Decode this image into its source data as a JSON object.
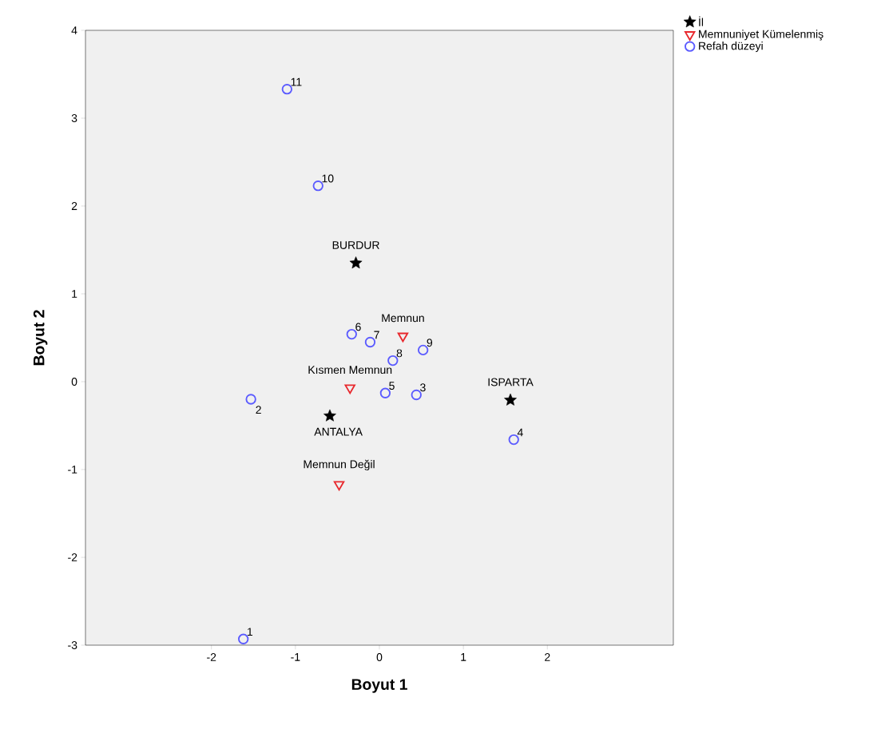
{
  "chart_data": {
    "type": "scatter",
    "xlabel": "Boyut 1",
    "ylabel": "Boyut 2",
    "xlim": [
      -3.5,
      3.5
    ],
    "ylim": [
      -3,
      4
    ],
    "xticks": [
      -2,
      -1,
      0,
      1,
      2
    ],
    "yticks": [
      -3,
      -2,
      -1,
      0,
      1,
      2,
      3,
      4
    ],
    "grid": false,
    "legend": "top right",
    "series": [
      {
        "name": "İl",
        "color": "#000000",
        "marker": "star",
        "x": [
          -0.28,
          -0.59,
          1.56
        ],
        "values": [
          1.35,
          -0.39,
          -0.21
        ]
      },
      {
        "name": "Memnuniyet Kümelenmiş",
        "color": "#e8282d",
        "marker": "triangle",
        "x": [
          0.28,
          -0.35,
          -0.48
        ],
        "values": [
          0.52,
          -0.07,
          -1.17
        ]
      },
      {
        "name": "Refah düzeyi",
        "color": "#5b5bff",
        "marker": "circle",
        "x": [
          -1.62,
          -1.53,
          0.44,
          1.6,
          0.07,
          -0.33,
          -0.11,
          0.16,
          0.52,
          -0.73,
          -1.1
        ],
        "values": [
          -2.93,
          -0.2,
          -0.15,
          -0.66,
          -0.13,
          0.54,
          0.45,
          0.24,
          0.36,
          2.23,
          3.33
        ]
      }
    ],
    "annotations": [
      {
        "text": "1",
        "x": -1.62,
        "y": -2.93
      },
      {
        "text": "2",
        "x": -1.53,
        "y": -0.2
      },
      {
        "text": "3",
        "x": 0.44,
        "y": -0.15
      },
      {
        "text": "4",
        "x": 1.6,
        "y": -0.66
      },
      {
        "text": "5",
        "x": 0.07,
        "y": -0.13
      },
      {
        "text": "6",
        "x": -0.33,
        "y": 0.54
      },
      {
        "text": "7",
        "x": -0.11,
        "y": 0.45
      },
      {
        "text": "8",
        "x": 0.16,
        "y": 0.24
      },
      {
        "text": "9",
        "x": 0.52,
        "y": 0.36
      },
      {
        "text": "10",
        "x": -0.73,
        "y": 2.23
      },
      {
        "text": "11",
        "x": -1.1,
        "y": 3.33
      },
      {
        "text": "Memnun",
        "x": 0.28,
        "y": 0.52
      },
      {
        "text": "Kısmen Memnun",
        "x": -0.35,
        "y": -0.07
      },
      {
        "text": "Memnun Değil",
        "x": -0.48,
        "y": -1.17
      },
      {
        "text": "BURDUR",
        "x": -0.28,
        "y": 1.35
      },
      {
        "text": "ANTALYA",
        "x": -0.59,
        "y": -0.39
      },
      {
        "text": "ISPARTA",
        "x": 1.56,
        "y": -0.21
      }
    ]
  }
}
